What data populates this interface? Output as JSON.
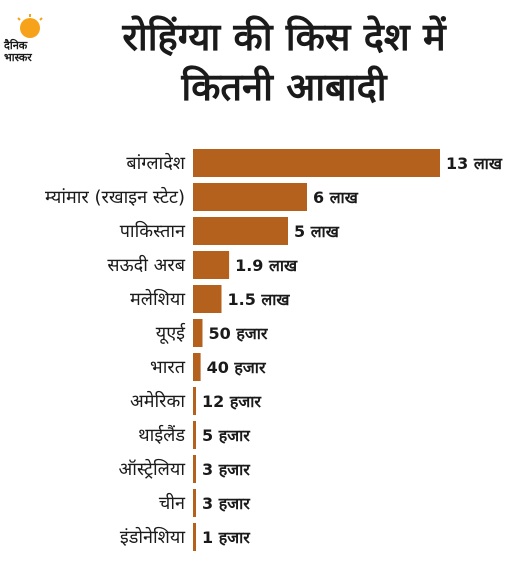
{
  "logo": {
    "line1": "दैनिक",
    "line2": "भास्कर",
    "accent": "#f7a21b"
  },
  "title": {
    "line1": "रोहिंग्या की किस देश में",
    "line2": "कितनी आबादी"
  },
  "colors": {
    "bar": "#b4611e",
    "text": "#1a1a1a"
  },
  "chart_data": {
    "type": "bar",
    "orientation": "horizontal",
    "categories": [
      "बांग्लादेश",
      "म्यांमार (रखाइन स्टेट)",
      "पाकिस्तान",
      "सऊदी अरब",
      "मलेशिया",
      "यूएई",
      "भारत",
      "अमेरिका",
      "थाईलैंड",
      "ऑस्ट्रेलिया",
      "चीन",
      "इंडोनेशिया"
    ],
    "values": [
      1300000,
      600000,
      500000,
      190000,
      150000,
      50000,
      40000,
      12000,
      5000,
      3000,
      3000,
      1000
    ],
    "data_labels": [
      "13 लाख",
      "6 लाख",
      "5 लाख",
      "1.9 लाख",
      "1.5 लाख",
      "50 हजार",
      "40 हजार",
      "12 हजार",
      "5 हजार",
      "3 हजार",
      "3 हजार",
      "1 हजार"
    ],
    "title": "रोहिंग्या की किस देश में कितनी आबादी",
    "xlabel": "",
    "ylabel": "",
    "grid": false,
    "legend": "none"
  }
}
